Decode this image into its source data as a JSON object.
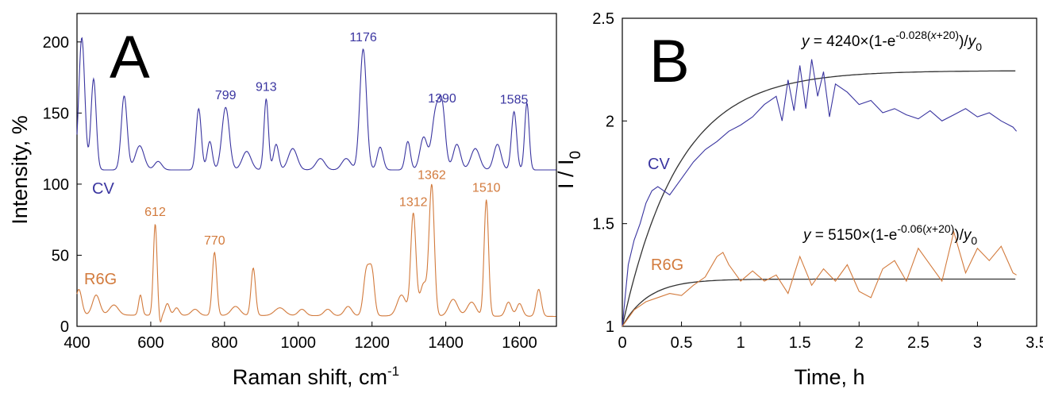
{
  "colors": {
    "cv": "#3a35a0",
    "r6g": "#d27a3c",
    "fit": "#333333",
    "axis": "#000000"
  },
  "chart_data": [
    {
      "type": "line",
      "panel_label": "A",
      "xlabel": "Raman shift, cm",
      "xlabel_sup": "-1",
      "ylabel": "Intensity, %",
      "xlim": [
        400,
        1700
      ],
      "ylim": [
        0,
        220
      ],
      "xticks": [
        "400",
        "600",
        "800",
        "1000",
        "1200",
        "1400",
        "1600"
      ],
      "xtick_values": [
        400,
        600,
        800,
        1000,
        1200,
        1400,
        1600
      ],
      "yticks": [
        "0",
        "50",
        "100",
        "150",
        "200"
      ],
      "ytick_values": [
        0,
        50,
        100,
        150,
        200
      ],
      "series": [
        {
          "name": "CV",
          "baseline": 110,
          "end_value": 110,
          "peaks": [
            [
              413,
              203,
              8
            ],
            [
              445,
              174,
              7
            ],
            [
              528,
              162,
              8
            ],
            [
              570,
              127,
              12
            ],
            [
              620,
              116,
              10
            ],
            [
              730,
              153,
              7
            ],
            [
              760,
              130,
              7
            ],
            [
              803,
              154,
              10
            ],
            [
              860,
              123,
              12
            ],
            [
              913,
              160,
              6
            ],
            [
              940,
              128,
              7
            ],
            [
              985,
              125,
              12
            ],
            [
              1060,
              118,
              12
            ],
            [
              1130,
              118,
              12
            ],
            [
              1176,
              195,
              9
            ],
            [
              1222,
              126,
              8
            ],
            [
              1297,
              130,
              7
            ],
            [
              1340,
              133,
              10
            ],
            [
              1372,
              148,
              10
            ],
            [
              1390,
              152,
              9
            ],
            [
              1430,
              128,
              10
            ],
            [
              1480,
              125,
              12
            ],
            [
              1540,
              128,
              10
            ],
            [
              1585,
              151,
              7
            ],
            [
              1620,
              157,
              6
            ]
          ]
        },
        {
          "name": "R6G",
          "baseline": 8,
          "end_value": 7,
          "peaks": [
            [
              405,
              26,
              8
            ],
            [
              452,
              22,
              10
            ],
            [
              500,
              15,
              12
            ],
            [
              572,
              22,
              5
            ],
            [
              612,
              72,
              5
            ],
            [
              626,
              2,
              3
            ],
            [
              645,
              16,
              6
            ],
            [
              670,
              13,
              7
            ],
            [
              720,
              12,
              10
            ],
            [
              773,
              52,
              6
            ],
            [
              830,
              14,
              12
            ],
            [
              878,
              41,
              6
            ],
            [
              950,
              13,
              14
            ],
            [
              1010,
              12,
              10
            ],
            [
              1080,
              12,
              10
            ],
            [
              1135,
              14,
              10
            ],
            [
              1185,
              39,
              8
            ],
            [
              1200,
              36,
              7
            ],
            [
              1280,
              22,
              12
            ],
            [
              1312,
              79,
              7
            ],
            [
              1340,
              30,
              10
            ],
            [
              1362,
              98,
              7
            ],
            [
              1420,
              19,
              12
            ],
            [
              1470,
              17,
              12
            ],
            [
              1510,
              89,
              6
            ],
            [
              1570,
              17,
              8
            ],
            [
              1600,
              16,
              8
            ],
            [
              1652,
              26,
              7
            ]
          ]
        }
      ],
      "annotations": [
        {
          "series": "CV",
          "text": "1176",
          "x": 1176,
          "y": 195
        },
        {
          "series": "CV",
          "text": "799",
          "x": 803,
          "y": 154
        },
        {
          "series": "CV",
          "text": "913",
          "x": 913,
          "y": 160
        },
        {
          "series": "CV",
          "text": "1390",
          "x": 1390,
          "y": 152
        },
        {
          "series": "CV",
          "text": "1585",
          "x": 1585,
          "y": 151
        },
        {
          "series": "R6G",
          "text": "612",
          "x": 612,
          "y": 72
        },
        {
          "series": "R6G",
          "text": "770",
          "x": 773,
          "y": 52
        },
        {
          "series": "R6G",
          "text": "1312",
          "x": 1312,
          "y": 79
        },
        {
          "series": "R6G",
          "text": "1362",
          "x": 1362,
          "y": 98
        },
        {
          "series": "R6G",
          "text": "1510",
          "x": 1510,
          "y": 89
        }
      ]
    },
    {
      "type": "line",
      "panel_label": "B",
      "xlabel": "Time, h",
      "ylabel_main": "I / I",
      "ylabel_sub": "0",
      "xlim": [
        0,
        3.5
      ],
      "ylim": [
        1,
        2.5
      ],
      "xticks": [
        "0",
        "0.5",
        "1",
        "1.5",
        "2",
        "2.5",
        "3",
        "3.5"
      ],
      "xtick_values": [
        0,
        0.5,
        1,
        1.5,
        2,
        2.5,
        3,
        3.5
      ],
      "yticks": [
        "1",
        "1.5",
        "2",
        "2.5"
      ],
      "ytick_values": [
        1,
        1.5,
        2,
        2.5
      ],
      "series": [
        {
          "name": "CV",
          "x": [
            0,
            0.05,
            0.1,
            0.15,
            0.2,
            0.25,
            0.3,
            0.4,
            0.5,
            0.6,
            0.7,
            0.8,
            0.9,
            1.0,
            1.1,
            1.2,
            1.3,
            1.35,
            1.4,
            1.45,
            1.5,
            1.55,
            1.6,
            1.65,
            1.7,
            1.75,
            1.8,
            1.9,
            2.0,
            2.1,
            2.2,
            2.3,
            2.4,
            2.5,
            2.6,
            2.7,
            2.8,
            2.9,
            3.0,
            3.1,
            3.2,
            3.3,
            3.33
          ],
          "y": [
            1.0,
            1.3,
            1.42,
            1.5,
            1.6,
            1.66,
            1.68,
            1.64,
            1.72,
            1.8,
            1.86,
            1.9,
            1.95,
            1.98,
            2.02,
            2.08,
            2.12,
            2.0,
            2.2,
            2.05,
            2.27,
            2.06,
            2.3,
            2.12,
            2.24,
            2.02,
            2.18,
            2.14,
            2.08,
            2.1,
            2.04,
            2.06,
            2.03,
            2.01,
            2.05,
            2.0,
            2.03,
            2.06,
            2.02,
            2.04,
            2.0,
            1.97,
            1.95
          ]
        },
        {
          "name": "R6G",
          "x": [
            0,
            0.1,
            0.2,
            0.3,
            0.4,
            0.5,
            0.6,
            0.7,
            0.8,
            0.85,
            0.9,
            1.0,
            1.1,
            1.2,
            1.3,
            1.4,
            1.5,
            1.6,
            1.7,
            1.8,
            1.9,
            2.0,
            2.1,
            2.2,
            2.3,
            2.4,
            2.5,
            2.6,
            2.7,
            2.8,
            2.9,
            3.0,
            3.1,
            3.2,
            3.3,
            3.33
          ],
          "y": [
            1.0,
            1.08,
            1.12,
            1.14,
            1.16,
            1.15,
            1.2,
            1.24,
            1.34,
            1.36,
            1.3,
            1.22,
            1.27,
            1.22,
            1.25,
            1.16,
            1.34,
            1.2,
            1.28,
            1.22,
            1.3,
            1.17,
            1.14,
            1.28,
            1.32,
            1.22,
            1.38,
            1.3,
            1.22,
            1.46,
            1.26,
            1.38,
            1.32,
            1.39,
            1.26,
            1.25
          ]
        }
      ],
      "fits": [
        {
          "series": "CV",
          "asymptote": 2.245,
          "rate": 2.1,
          "equation_prefix": "y",
          "equation_middle": " = 4240×(1-e",
          "equation_exp": "-0.028(",
          "equation_exp_var": "x",
          "equation_exp_tail": "+20)",
          "equation_suffix": ")/",
          "equation_y0_main": "y",
          "equation_y0_sub": "0"
        },
        {
          "series": "R6G",
          "asymptote": 1.23,
          "rate": 4.5,
          "equation_prefix": "y",
          "equation_middle": " = 5150×(1-e",
          "equation_exp": "-0.06(",
          "equation_exp_var": "x",
          "equation_exp_tail": "+20)",
          "equation_suffix": ")/",
          "equation_y0_main": "y",
          "equation_y0_sub": "0"
        }
      ]
    }
  ]
}
